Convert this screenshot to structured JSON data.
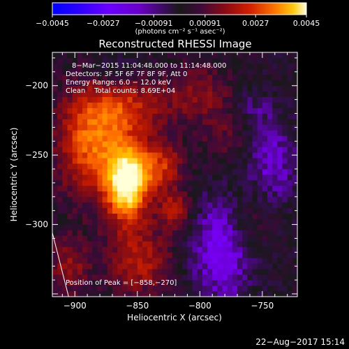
{
  "chart_data": {
    "type": "heatmap",
    "title": "Reconstructed RHESSI Image",
    "xlabel": "Heliocentric X (arcsec)",
    "ylabel": "Heliocentric Y (arcsec)",
    "xlim": [
      -918,
      -722
    ],
    "ylim": [
      -352,
      -176
    ],
    "x_ticks": [
      -900,
      -850,
      -800,
      -750
    ],
    "y_ticks": [
      -200,
      -250,
      -300
    ],
    "x_tick_labels": [
      "−900",
      "−850",
      "−800",
      "−750"
    ],
    "y_tick_labels": [
      "−200",
      "−250",
      "−300"
    ],
    "colorbar": {
      "range": [
        -0.0045,
        0.0045
      ],
      "ticks": [
        -0.0045,
        -0.0027,
        -0.00091,
        0.00091,
        0.0027,
        0.0045
      ],
      "tick_labels": [
        "−0.0045",
        "−0.0027",
        "−0.00091",
        "0.00091",
        "0.0027",
        "0.0045"
      ],
      "units": "(photons cm⁻² s⁻¹ asec⁻²)"
    },
    "annotations": [
      "8−Mar−2015 11:04:48.000 to 11:14:48.000",
      "Detectors: 3F 5F 6F 7F 8F 9F, Att 0",
      "Energy Range: 6.0 − 12.0 keV",
      "Clean    Total counts: 8.69E+04"
    ],
    "peak_label": "Position of Peak = [−858,−270]",
    "peak": {
      "x": -858,
      "y": -270
    },
    "limb_line": [
      [
        -918,
        -306
      ],
      [
        -905,
        -352
      ]
    ],
    "sources": [
      {
        "x": -858,
        "y": -270,
        "amp": 0.0045,
        "sx": 11,
        "sy": 18
      },
      {
        "x": -885,
        "y": -240,
        "amp": 0.0026,
        "sx": 20,
        "sy": 28
      },
      {
        "x": -832,
        "y": -258,
        "amp": 0.0019,
        "sx": 13,
        "sy": 13
      },
      {
        "x": -820,
        "y": -290,
        "amp": 0.0017,
        "sx": 9,
        "sy": 9
      },
      {
        "x": -855,
        "y": -215,
        "amp": 0.0014,
        "sx": 22,
        "sy": 14
      },
      {
        "x": -800,
        "y": -205,
        "amp": 0.0011,
        "sx": 18,
        "sy": 14
      },
      {
        "x": -848,
        "y": -325,
        "amp": 0.0016,
        "sx": 18,
        "sy": 18
      },
      {
        "x": -760,
        "y": -300,
        "amp": 0.0008,
        "sx": 12,
        "sy": 16
      },
      {
        "x": -780,
        "y": -235,
        "amp": 0.0007,
        "sx": 14,
        "sy": 14
      },
      {
        "x": -905,
        "y": -330,
        "amp": 0.0012,
        "sx": 12,
        "sy": 14
      },
      {
        "x": -782,
        "y": -318,
        "amp": -0.0016,
        "sx": 18,
        "sy": 26
      },
      {
        "x": -742,
        "y": -255,
        "amp": -0.0011,
        "sx": 14,
        "sy": 22
      },
      {
        "x": -870,
        "y": -188,
        "amp": -0.0008,
        "sx": 12,
        "sy": 10
      },
      {
        "x": -758,
        "y": -215,
        "amp": -0.0006,
        "sx": 12,
        "sy": 12
      }
    ]
  },
  "footer": {
    "date": "22−Aug−2017 15:14"
  },
  "colors": {
    "background": "#000000",
    "foreground": "#ffffff",
    "colormap_negative": [
      "#0000ff",
      "#3c00ff",
      "#7a00ff",
      "#6c00d8",
      "#3a0c5c",
      "#181818"
    ],
    "colormap_positive": [
      "#181818",
      "#3a0a3a",
      "#7a0a18",
      "#c21a00",
      "#ff6a00",
      "#ffc800",
      "#ffffd8"
    ]
  }
}
